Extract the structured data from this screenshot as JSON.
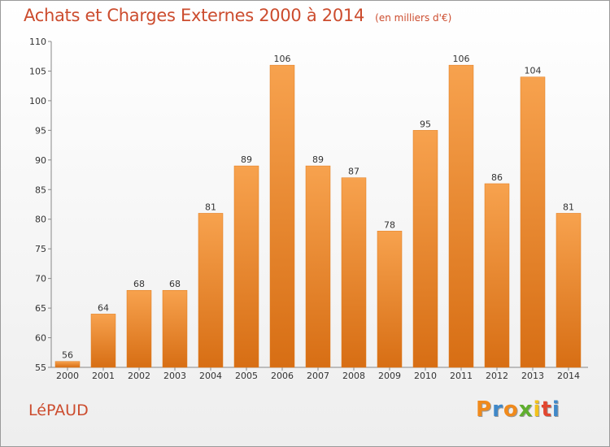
{
  "header": {
    "title": "Achats et Charges Externes 2000 à 2014",
    "unit": "(en milliers d'€)"
  },
  "commune": "LéPAUD",
  "brand": {
    "text": "Proxiti",
    "letter_colors": [
      "#f08a1c",
      "#3f88c9",
      "#f08a1c",
      "#5fae2e",
      "#f2c21b",
      "#e2462f",
      "#3f88c9"
    ]
  },
  "chart_data": {
    "type": "bar",
    "title": "Achats et Charges Externes 2000 à 2014",
    "subtitle": "(en milliers d'€)",
    "xlabel": "",
    "ylabel": "",
    "categories": [
      "2000",
      "2001",
      "2002",
      "2003",
      "2004",
      "2005",
      "2006",
      "2007",
      "2008",
      "2009",
      "2010",
      "2011",
      "2012",
      "2013",
      "2014"
    ],
    "values": [
      56,
      64,
      68,
      68,
      81,
      89,
      106,
      89,
      87,
      78,
      95,
      106,
      86,
      104,
      81
    ],
    "ylim": [
      55,
      110
    ],
    "yticks": [
      55,
      60,
      65,
      70,
      75,
      80,
      85,
      90,
      95,
      100,
      105,
      110
    ],
    "grid": false,
    "colors": {
      "bar_light": "#f7a24e",
      "bar_dark": "#d76e14",
      "bar_edge": "#e07a1a"
    }
  }
}
